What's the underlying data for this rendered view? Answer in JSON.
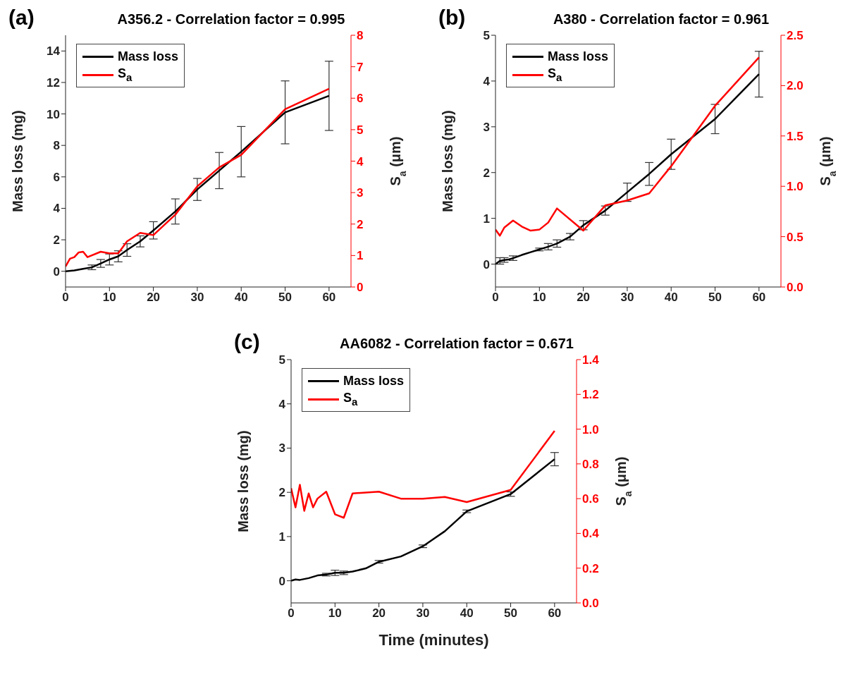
{
  "chart_data": [
    {
      "type": "line",
      "title": "A356.2 - Correlation factor = 0.995",
      "annotations": [
        "(a)"
      ],
      "ylabel": "Mass loss (mg)",
      "y2label": "S$_{a}$ (μm)",
      "legend": "top left",
      "xlim": [
        0,
        65
      ],
      "xticks": [
        0,
        10,
        20,
        30,
        40,
        50,
        60
      ],
      "ylim": [
        -1,
        15
      ],
      "yticks": [
        0,
        2,
        4,
        6,
        8,
        10,
        12,
        14
      ],
      "y2lim": [
        0,
        8
      ],
      "y2ticks": [
        0,
        1,
        2,
        3,
        4,
        5,
        6,
        7,
        8
      ],
      "series": [
        {
          "name": "Mass loss",
          "color": "#000000",
          "x": [
            0,
            2,
            4,
            6,
            8,
            10,
            12,
            14,
            17,
            20,
            25,
            30,
            35,
            40,
            50,
            60
          ],
          "values": [
            0,
            0.05,
            0.15,
            0.25,
            0.5,
            0.75,
            0.95,
            1.35,
            1.9,
            2.6,
            3.8,
            5.2,
            6.4,
            7.6,
            10.1,
            11.15
          ],
          "errors": [
            null,
            null,
            null,
            0.15,
            0.25,
            0.35,
            0.35,
            0.4,
            0.35,
            0.55,
            0.8,
            0.7,
            1.15,
            1.6,
            2,
            2.2
          ]
        },
        {
          "name": "S$_{a}$",
          "color": "#ff0000",
          "axis": "y2",
          "x": [
            0,
            1,
            2,
            3,
            4,
            5,
            8,
            10,
            12,
            14,
            17,
            20,
            25,
            30,
            35,
            40,
            50,
            60
          ],
          "values": [
            0.65,
            0.9,
            0.95,
            1.1,
            1.12,
            0.95,
            1.12,
            1.07,
            1.07,
            1.45,
            1.72,
            1.65,
            2.3,
            3.2,
            3.8,
            4.2,
            5.65,
            6.3
          ]
        }
      ]
    },
    {
      "type": "line",
      "title": "A380 - Correlation factor = 0.961",
      "annotations": [
        "(b)"
      ],
      "ylabel": "Mass loss (mg)",
      "y2label": "S$_{a}$ (μm)",
      "legend": "top left",
      "xlim": [
        0,
        65
      ],
      "xticks": [
        0,
        10,
        20,
        30,
        40,
        50,
        60
      ],
      "ylim": [
        -0.5,
        5
      ],
      "yticks": [
        0,
        1,
        2,
        3,
        4,
        5
      ],
      "y2lim": [
        0,
        2.5
      ],
      "y2ticks": [
        {
          "value": 0,
          "label": "0.0"
        },
        0.5,
        {
          "value": 1,
          "label": "1.0"
        },
        1.5,
        {
          "value": 2,
          "label": "2.0"
        },
        2.5
      ],
      "series": [
        {
          "name": "Mass loss",
          "color": "#000000",
          "x": [
            0,
            1,
            2,
            3,
            4,
            6,
            8,
            10,
            12,
            14,
            17,
            20,
            25,
            30,
            35,
            40,
            50,
            60
          ],
          "values": [
            0,
            0.07,
            0.09,
            0.1,
            0.13,
            0.2,
            0.26,
            0.32,
            0.38,
            0.45,
            0.6,
            0.85,
            1.17,
            1.57,
            1.97,
            2.4,
            3.17,
            4.15
          ],
          "errors": [
            null,
            0.07,
            0.05,
            null,
            0.05,
            null,
            null,
            0.03,
            0.07,
            0.08,
            0.07,
            0.1,
            0.1,
            0.2,
            0.25,
            0.33,
            0.32,
            0.5
          ]
        },
        {
          "name": "S$_{a}$",
          "color": "#ff0000",
          "axis": "y2",
          "x": [
            0,
            1,
            2,
            4,
            6,
            8,
            10,
            12,
            14,
            20,
            25,
            30,
            35,
            40,
            50,
            60
          ],
          "values": [
            0.57,
            0.51,
            0.59,
            0.66,
            0.6,
            0.56,
            0.57,
            0.64,
            0.78,
            0.56,
            0.81,
            0.86,
            0.93,
            1.2,
            1.8,
            2.28
          ]
        }
      ]
    },
    {
      "type": "line",
      "title": "AA6082 - Correlation factor = 0.671",
      "annotations": [
        "(c)"
      ],
      "xlabel": "Time (minutes)",
      "ylabel": "Mass loss (mg)",
      "y2label": "S$_{a}$ (μm)",
      "legend": "top left",
      "xlim": [
        0,
        65
      ],
      "xticks": [
        0,
        10,
        20,
        30,
        40,
        50,
        60
      ],
      "ylim": [
        -0.5,
        5
      ],
      "yticks": [
        0,
        1,
        2,
        3,
        4,
        5
      ],
      "y2lim": [
        0,
        1.4
      ],
      "y2ticks": [
        {
          "value": 0,
          "label": "0.0"
        },
        0.2,
        0.4,
        0.6,
        0.8,
        {
          "value": 1,
          "label": "1.0"
        },
        1.2,
        1.4
      ],
      "series": [
        {
          "name": "Mass loss",
          "color": "#000000",
          "x": [
            0,
            1,
            2,
            4,
            6,
            8,
            10,
            12,
            14,
            17,
            20,
            25,
            30,
            35,
            40,
            50,
            60
          ],
          "values": [
            0,
            0.03,
            0.02,
            0.06,
            0.12,
            0.14,
            0.18,
            0.18,
            0.21,
            0.28,
            0.43,
            0.55,
            0.78,
            1.12,
            1.57,
            1.96,
            2.75
          ],
          "errors": [
            null,
            null,
            null,
            null,
            null,
            0.03,
            0.06,
            0.04,
            null,
            null,
            0.03,
            null,
            0.03,
            null,
            0.03,
            0.05,
            0.15
          ]
        },
        {
          "name": "S$_{a}$",
          "color": "#ff0000",
          "axis": "y2",
          "x": [
            0,
            1,
            2,
            3,
            4,
            5,
            6,
            8,
            10,
            12,
            14,
            20,
            25,
            30,
            35,
            40,
            50,
            60
          ],
          "values": [
            0.66,
            0.55,
            0.68,
            0.53,
            0.63,
            0.55,
            0.6,
            0.64,
            0.51,
            0.49,
            0.63,
            0.64,
            0.6,
            0.6,
            0.61,
            0.58,
            0.65,
            0.99
          ]
        }
      ]
    }
  ]
}
